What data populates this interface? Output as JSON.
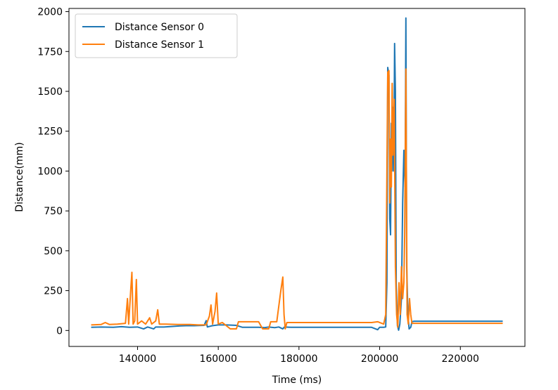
{
  "chart_data": {
    "type": "line",
    "title": "",
    "xlabel": "Time (ms)",
    "ylabel": "Distance(mm)",
    "xlim": [
      123000,
      236000
    ],
    "ylim": [
      -100,
      2020
    ],
    "xticks": [
      140000,
      160000,
      180000,
      200000,
      220000
    ],
    "yticks": [
      0,
      250,
      500,
      750,
      1000,
      1250,
      1500,
      1750,
      2000
    ],
    "grid": false,
    "legend_position": "top-left",
    "series": [
      {
        "name": "Distance Sensor 0",
        "color": "#1f77b4",
        "points": [
          [
            128500,
            20
          ],
          [
            131000,
            22
          ],
          [
            134000,
            20
          ],
          [
            136000,
            24
          ],
          [
            138000,
            20
          ],
          [
            140000,
            22
          ],
          [
            141500,
            10
          ],
          [
            142500,
            22
          ],
          [
            144000,
            10
          ],
          [
            144500,
            22
          ],
          [
            146500,
            22
          ],
          [
            150000,
            28
          ],
          [
            152000,
            30
          ],
          [
            154000,
            30
          ],
          [
            156500,
            32
          ],
          [
            157000,
            62
          ],
          [
            157300,
            22
          ],
          [
            158500,
            30
          ],
          [
            160000,
            35
          ],
          [
            162000,
            35
          ],
          [
            164500,
            32
          ],
          [
            166000,
            20
          ],
          [
            168000,
            20
          ],
          [
            170000,
            20
          ],
          [
            171500,
            18
          ],
          [
            172500,
            22
          ],
          [
            174000,
            18
          ],
          [
            175000,
            22
          ],
          [
            176000,
            10
          ],
          [
            176400,
            22
          ],
          [
            178000,
            20
          ],
          [
            182000,
            20
          ],
          [
            186000,
            20
          ],
          [
            190000,
            20
          ],
          [
            194000,
            20
          ],
          [
            198000,
            20
          ],
          [
            199500,
            5
          ],
          [
            200000,
            20
          ],
          [
            201000,
            20
          ],
          [
            201500,
            22
          ],
          [
            201800,
            300
          ],
          [
            202000,
            1650
          ],
          [
            202300,
            1600
          ],
          [
            202500,
            700
          ],
          [
            202700,
            600
          ],
          [
            202900,
            1300
          ],
          [
            203100,
            1000
          ],
          [
            203300,
            1400
          ],
          [
            203500,
            1000
          ],
          [
            203700,
            1800
          ],
          [
            203900,
            1500
          ],
          [
            204100,
            300
          ],
          [
            204400,
            30
          ],
          [
            204700,
            2
          ],
          [
            205000,
            40
          ],
          [
            205400,
            200
          ],
          [
            205700,
            800
          ],
          [
            206000,
            1130
          ],
          [
            206300,
            900
          ],
          [
            206500,
            1960
          ],
          [
            206700,
            400
          ],
          [
            207000,
            100
          ],
          [
            207300,
            10
          ],
          [
            207700,
            20
          ],
          [
            208000,
            55
          ],
          [
            208500,
            58
          ],
          [
            212000,
            58
          ],
          [
            216000,
            58
          ],
          [
            220000,
            58
          ],
          [
            224000,
            58
          ],
          [
            228000,
            58
          ],
          [
            230500,
            58
          ]
        ]
      },
      {
        "name": "Distance Sensor 1",
        "color": "#ff7f0e",
        "points": [
          [
            128500,
            35
          ],
          [
            131000,
            38
          ],
          [
            132000,
            50
          ],
          [
            133000,
            38
          ],
          [
            135000,
            40
          ],
          [
            137000,
            45
          ],
          [
            137500,
            200
          ],
          [
            137800,
            40
          ],
          [
            138300,
            250
          ],
          [
            138600,
            365
          ],
          [
            138900,
            40
          ],
          [
            139300,
            60
          ],
          [
            139700,
            320
          ],
          [
            140000,
            40
          ],
          [
            141000,
            60
          ],
          [
            142000,
            40
          ],
          [
            143000,
            80
          ],
          [
            143500,
            40
          ],
          [
            144500,
            60
          ],
          [
            145000,
            130
          ],
          [
            145400,
            40
          ],
          [
            147000,
            40
          ],
          [
            150000,
            38
          ],
          [
            153000,
            38
          ],
          [
            155000,
            35
          ],
          [
            157000,
            35
          ],
          [
            157800,
            90
          ],
          [
            158200,
            160
          ],
          [
            158600,
            40
          ],
          [
            159200,
            120
          ],
          [
            159600,
            235
          ],
          [
            160000,
            40
          ],
          [
            161000,
            50
          ],
          [
            162000,
            30
          ],
          [
            163000,
            10
          ],
          [
            164500,
            10
          ],
          [
            165000,
            55
          ],
          [
            166000,
            55
          ],
          [
            168000,
            55
          ],
          [
            170000,
            55
          ],
          [
            171000,
            10
          ],
          [
            172500,
            10
          ],
          [
            173000,
            55
          ],
          [
            174500,
            55
          ],
          [
            175500,
            250
          ],
          [
            176000,
            335
          ],
          [
            176300,
            100
          ],
          [
            176600,
            10
          ],
          [
            177000,
            50
          ],
          [
            182000,
            50
          ],
          [
            186000,
            50
          ],
          [
            190000,
            50
          ],
          [
            194000,
            50
          ],
          [
            198000,
            50
          ],
          [
            199500,
            55
          ],
          [
            200500,
            45
          ],
          [
            201000,
            40
          ],
          [
            201500,
            100
          ],
          [
            202000,
            1620
          ],
          [
            202300,
            1630
          ],
          [
            202500,
            800
          ],
          [
            202700,
            1200
          ],
          [
            202900,
            900
          ],
          [
            203100,
            1550
          ],
          [
            203300,
            1100
          ],
          [
            203600,
            1450
          ],
          [
            203900,
            400
          ],
          [
            204200,
            100
          ],
          [
            204500,
            20
          ],
          [
            204800,
            300
          ],
          [
            205100,
            100
          ],
          [
            205400,
            400
          ],
          [
            205700,
            200
          ],
          [
            206000,
            300
          ],
          [
            206200,
            600
          ],
          [
            206500,
            1640
          ],
          [
            206800,
            100
          ],
          [
            207100,
            40
          ],
          [
            207400,
            200
          ],
          [
            207700,
            100
          ],
          [
            208000,
            45
          ],
          [
            212000,
            45
          ],
          [
            216000,
            45
          ],
          [
            220000,
            45
          ],
          [
            224000,
            45
          ],
          [
            228000,
            45
          ],
          [
            230500,
            45
          ]
        ]
      }
    ]
  }
}
